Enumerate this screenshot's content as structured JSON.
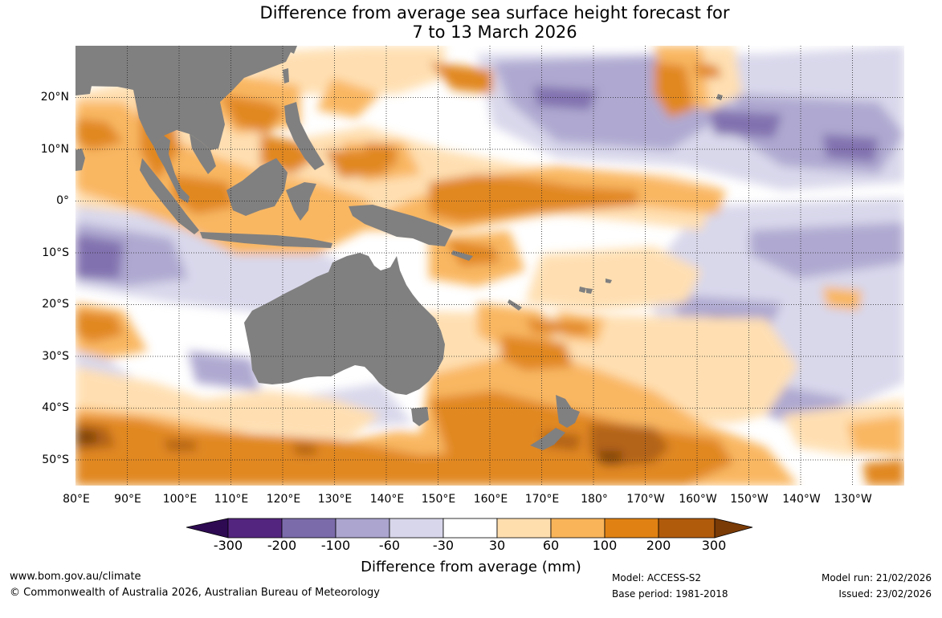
{
  "title": {
    "line1": "Difference from average sea surface height forecast for",
    "line2": "7 to 13 March 2026"
  },
  "map": {
    "type": "filled-contour-map",
    "variable": "Difference from average sea surface height",
    "lat_range": [
      -55,
      30
    ],
    "lon_range": [
      80,
      240
    ],
    "lat_labels": [
      {
        "label": "20°N",
        "lat": 20
      },
      {
        "label": "10°N",
        "lat": 10
      },
      {
        "label": "0°",
        "lat": 0
      },
      {
        "label": "10°S",
        "lat": -10
      },
      {
        "label": "20°S",
        "lat": -20
      },
      {
        "label": "30°S",
        "lat": -30
      },
      {
        "label": "40°S",
        "lat": -40
      },
      {
        "label": "50°S",
        "lat": -50
      }
    ],
    "lon_labels": [
      {
        "label": "80°E",
        "lon": 80
      },
      {
        "label": "90°E",
        "lon": 90
      },
      {
        "label": "100°E",
        "lon": 100
      },
      {
        "label": "110°E",
        "lon": 110
      },
      {
        "label": "120°E",
        "lon": 120
      },
      {
        "label": "130°E",
        "lon": 130
      },
      {
        "label": "140°E",
        "lon": 140
      },
      {
        "label": "150°E",
        "lon": 150
      },
      {
        "label": "160°E",
        "lon": 160
      },
      {
        "label": "170°E",
        "lon": 170
      },
      {
        "label": "180°",
        "lon": 180
      },
      {
        "label": "170°W",
        "lon": 190
      },
      {
        "label": "160°W",
        "lon": 200
      },
      {
        "label": "150°W",
        "lon": 210
      },
      {
        "label": "140°W",
        "lon": 220
      },
      {
        "label": "130°W",
        "lon": 230
      }
    ],
    "land_color": "#808080",
    "ocean_color": "#ffffff"
  },
  "colorbar": {
    "colors": [
      "#2d0a52",
      "#54257f",
      "#7b6bab",
      "#aba5cf",
      "#d7d6ea",
      "#ffffff",
      "#ffdeae",
      "#f9b45a",
      "#e08213",
      "#b05b0c",
      "#7a3b06"
    ],
    "ticks": [
      "-300",
      "-200",
      "-100",
      "-60",
      "-30",
      "30",
      "60",
      "100",
      "200",
      "300"
    ],
    "title": "Difference from average (mm)"
  },
  "footer": {
    "website": "www.bom.gov.au/climate",
    "copyright": "© Commonwealth of Australia 2026, Australian Bureau of Meteorology",
    "model": "Model: ACCESS-S2",
    "base_period": "Base period: 1981-2018",
    "model_run": "Model run: 21/02/2026",
    "issued": "Issued: 23/02/2026"
  }
}
